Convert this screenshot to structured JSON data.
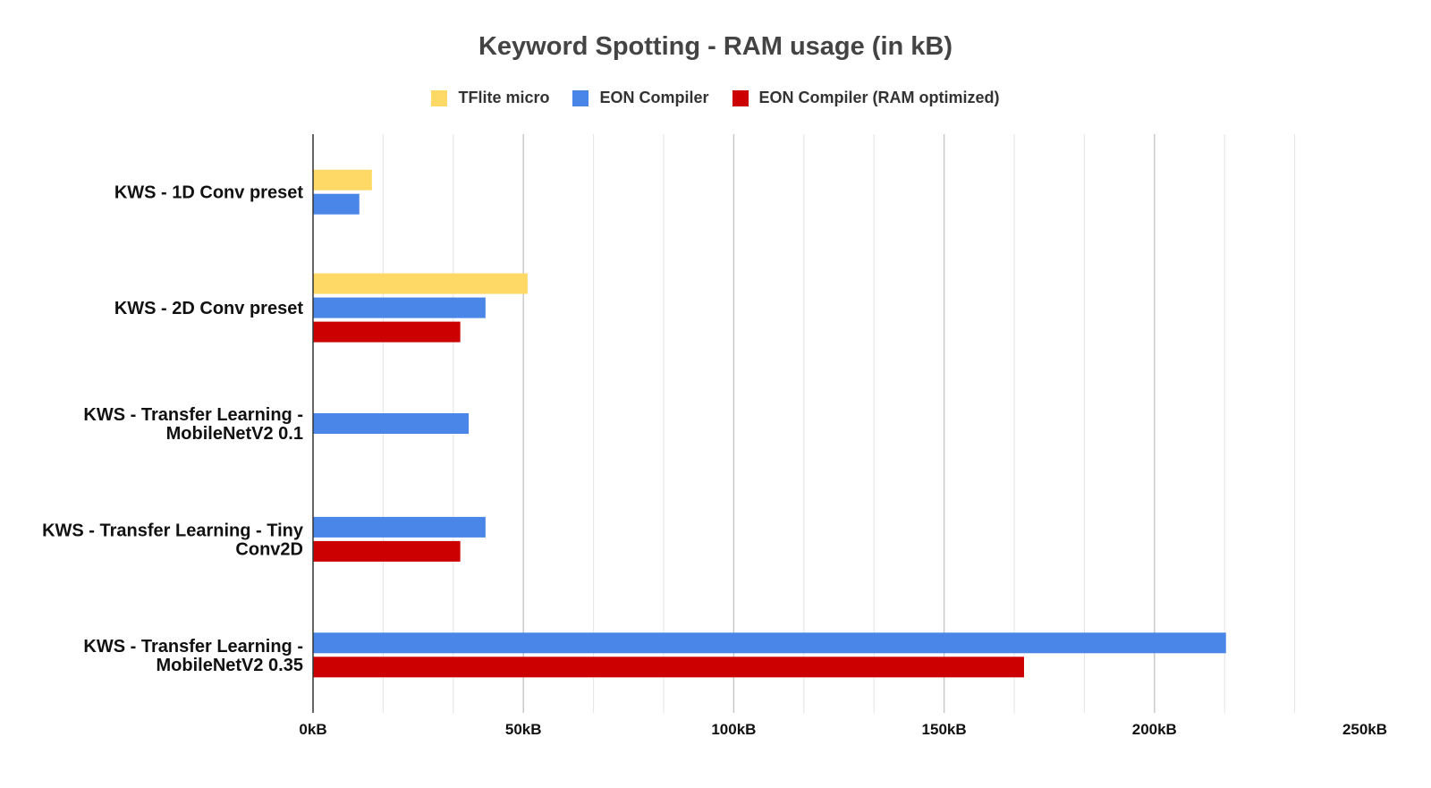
{
  "chart_data": {
    "type": "bar",
    "orientation": "horizontal",
    "title": "Keyword Spotting - RAM usage (in kB)",
    "xlabel": "",
    "ylabel": "",
    "categories": [
      [
        "KWS - 1D Conv preset"
      ],
      [
        "KWS - 2D Conv preset"
      ],
      [
        "KWS - Transfer Learning -",
        "MobileNetV2 0.1"
      ],
      [
        "KWS - Transfer Learning - Tiny",
        "Conv2D"
      ],
      [
        "KWS  - Transfer Learning -",
        "MobileNetV2 0.35"
      ]
    ],
    "series": [
      {
        "name": "TFlite micro",
        "color": "#FFD966",
        "values": [
          14,
          51,
          null,
          null,
          null
        ]
      },
      {
        "name": "EON Compiler",
        "color": "#4A86E8",
        "values": [
          11,
          41,
          37,
          41,
          217
        ]
      },
      {
        "name": "EON Compiler (RAM optimized)",
        "color": "#CC0000",
        "values": [
          null,
          35,
          null,
          35,
          169
        ]
      }
    ],
    "xlim": [
      0,
      250
    ],
    "x_ticks": [
      {
        "value": 0,
        "label": "0kB"
      },
      {
        "value": 50,
        "label": "50kB"
      },
      {
        "value": 100,
        "label": "100kB"
      },
      {
        "value": 150,
        "label": "150kB"
      },
      {
        "value": 200,
        "label": "200kB"
      },
      {
        "value": 250,
        "label": "250kB"
      }
    ],
    "minor_gridline_step": 16.667,
    "grid": true,
    "legend_position": "top"
  }
}
